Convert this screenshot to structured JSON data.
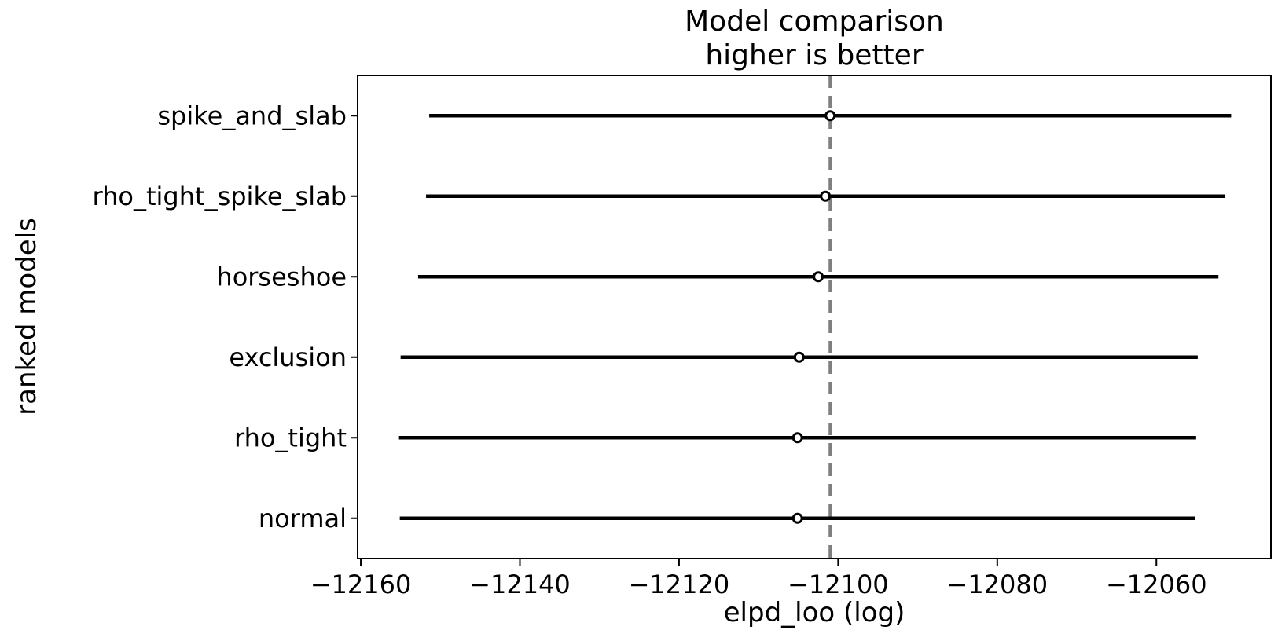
{
  "chart_data": {
    "type": "scatter",
    "title": "Model comparison\nhigher is better",
    "xlabel": "elpd_loo (log)",
    "ylabel": "ranked models",
    "categories": [
      "spike_and_slab",
      "rho_tight_spike_slab",
      "horseshoe",
      "exclusion",
      "rho_tight",
      "normal"
    ],
    "series": [
      {
        "name": "elpd_loo",
        "values": [
          -12101.0,
          -12101.6,
          -12102.5,
          -12104.9,
          -12105.1,
          -12105.1
        ],
        "errors": [
          50.4,
          50.2,
          50.3,
          50.1,
          50.1,
          50.0
        ]
      }
    ],
    "reference_line_x": -12101.0,
    "xlim": [
      -12160.4,
      -12045.6
    ],
    "xticks": [
      -12160,
      -12140,
      -12120,
      -12100,
      -12080,
      -12060
    ],
    "grid": false,
    "legend": false,
    "colors": {
      "errorbar": "#000000",
      "marker_edge": "#000000",
      "marker_fill": "#ffffff",
      "reference_line": "#7f7f7f",
      "axes_edge": "#000000",
      "background": "#ffffff"
    }
  }
}
